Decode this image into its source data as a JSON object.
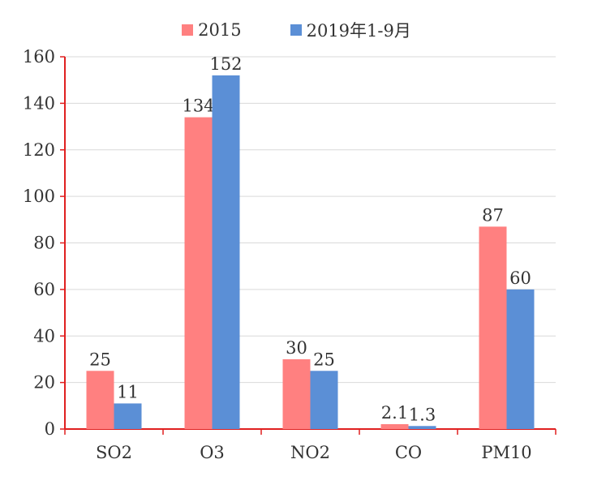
{
  "chart_data": {
    "type": "bar",
    "categories": [
      "SO2",
      "O3",
      "NO2",
      "CO",
      "PM10"
    ],
    "series": [
      {
        "name": "2015",
        "values": [
          25,
          134,
          30,
          2.1,
          87
        ],
        "labels": [
          "25",
          "134",
          "30",
          "2.1",
          "87"
        ],
        "color": "#FF8080"
      },
      {
        "name": "2019年1-9月",
        "values": [
          11,
          152,
          25,
          1.3,
          60
        ],
        "labels": [
          "11",
          "152",
          "25",
          "1.3",
          "60"
        ],
        "color": "#5B8FD6"
      }
    ],
    "ylim": [
      0,
      160
    ],
    "yticks": [
      0,
      20,
      40,
      60,
      80,
      100,
      120,
      140,
      160
    ],
    "grid": true,
    "axis_color": "#E02020",
    "legend_position": "top"
  }
}
